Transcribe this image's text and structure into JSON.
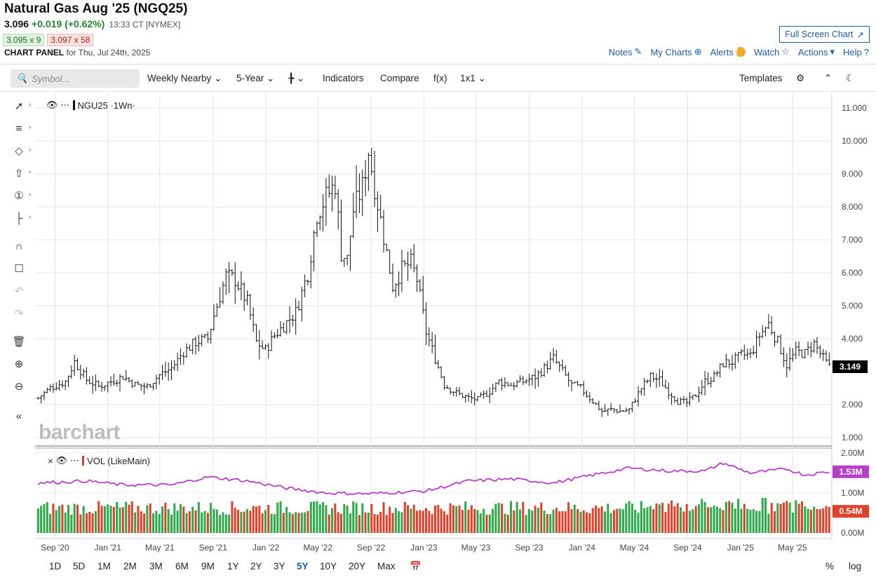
{
  "header": {
    "title": "Natural Gas Aug '25 (NGQ25)",
    "last": "3.096",
    "change": "+0.019 (+0.62%)",
    "time": "13:33 CT [NYMEX]",
    "bid": "3.095 x 9",
    "ask": "3.097 x 58",
    "panel_label": "CHART PANEL",
    "panel_date": "for Thu, Jul 24th, 2025",
    "fullscreen_label": "Full Screen Chart"
  },
  "top_links": {
    "notes": "Notes",
    "my_charts": "My Charts",
    "alerts": "Alerts",
    "alert_badge": "!",
    "watch": "Watch",
    "actions": "Actions",
    "help": "Help"
  },
  "toolbar": {
    "search_placeholder": "Symbol...",
    "interval": "Weekly Nearby",
    "period": "5-Year",
    "indicators": "Indicators",
    "compare": "Compare",
    "fx": "f(x)",
    "layout": "1x1",
    "templates": "Templates"
  },
  "legend": {
    "main": "NGU25 ·1Wn·",
    "volume": "VOL (LikeMain)"
  },
  "watermark": "barchart",
  "ranges": [
    "1D",
    "5D",
    "1M",
    "2M",
    "3M",
    "6M",
    "9M",
    "1Y",
    "2Y",
    "3Y",
    "5Y",
    "10Y",
    "20Y",
    "Max"
  ],
  "active_range": "5Y",
  "range_right": {
    "percent": "%",
    "log": "log"
  },
  "colors": {
    "up": "#2eaa4b",
    "down": "#e0412a",
    "vol_line": "#b63fc8",
    "price_label_bg": "#000000",
    "accent": "#1b5fa8"
  },
  "chart_data": [
    {
      "type": "ohlc",
      "symbol": "NGU25",
      "interval": "Weekly",
      "y_ticks": [
        "11.000",
        "10.000",
        "9.000",
        "8.000",
        "7.000",
        "6.000",
        "5.000",
        "4.000",
        "2.000",
        "1.000"
      ],
      "ylim": [
        0.55,
        11.2
      ],
      "x_ticks": [
        "Sep '20",
        "Jan '21",
        "May '21",
        "Sep '21",
        "Jan '22",
        "May '22",
        "Sep '22",
        "Jan '23",
        "May '23",
        "Sep '23",
        "Jan '24",
        "May '24",
        "Sep '24",
        "Jan '25",
        "May '25"
      ],
      "last_price_label": "3.149",
      "anchor_closes": [
        [
          "2020-07-24",
          2.2
        ],
        [
          "2020-08-21",
          2.5
        ],
        [
          "2020-09-25",
          2.7
        ],
        [
          "2020-10-16",
          3.3
        ],
        [
          "2020-11-13",
          2.75
        ],
        [
          "2020-12-11",
          2.55
        ],
        [
          "2021-01-08",
          2.7
        ],
        [
          "2021-02-05",
          2.85
        ],
        [
          "2021-03-05",
          2.6
        ],
        [
          "2021-04-02",
          2.55
        ],
        [
          "2021-04-30",
          2.9
        ],
        [
          "2021-05-28",
          3.1
        ],
        [
          "2021-06-25",
          3.6
        ],
        [
          "2021-07-23",
          3.9
        ],
        [
          "2021-08-20",
          4.0
        ],
        [
          "2021-09-03",
          4.7
        ],
        [
          "2021-10-01",
          5.9
        ],
        [
          "2021-10-22",
          5.8
        ],
        [
          "2021-11-19",
          5.1
        ],
        [
          "2021-12-10",
          3.9
        ],
        [
          "2021-12-31",
          3.65
        ],
        [
          "2022-01-21",
          4.1
        ],
        [
          "2022-02-18",
          4.5
        ],
        [
          "2022-03-11",
          4.8
        ],
        [
          "2022-04-08",
          6.0
        ],
        [
          "2022-04-29",
          7.8
        ],
        [
          "2022-05-20",
          8.3
        ],
        [
          "2022-06-10",
          8.7
        ],
        [
          "2022-06-24",
          6.6
        ],
        [
          "2022-07-08",
          6.4
        ],
        [
          "2022-07-22",
          7.9
        ],
        [
          "2022-08-12",
          8.6
        ],
        [
          "2022-08-26",
          9.7
        ],
        [
          "2022-09-16",
          8.1
        ],
        [
          "2022-10-07",
          6.6
        ],
        [
          "2022-10-21",
          5.6
        ],
        [
          "2022-11-11",
          6.1
        ],
        [
          "2022-12-02",
          6.3
        ],
        [
          "2022-12-16",
          5.8
        ],
        [
          "2023-01-06",
          4.2
        ],
        [
          "2023-01-27",
          3.4
        ],
        [
          "2023-02-17",
          2.6
        ],
        [
          "2023-03-17",
          2.35
        ],
        [
          "2023-04-14",
          2.2
        ],
        [
          "2023-05-05",
          2.15
        ],
        [
          "2023-06-02",
          2.4
        ],
        [
          "2023-06-23",
          2.7
        ],
        [
          "2023-07-21",
          2.6
        ],
        [
          "2023-08-18",
          2.7
        ],
        [
          "2023-09-15",
          2.85
        ],
        [
          "2023-10-06",
          3.1
        ],
        [
          "2023-10-27",
          3.4
        ],
        [
          "2023-11-17",
          3.0
        ],
        [
          "2023-12-08",
          2.6
        ],
        [
          "2023-12-29",
          2.5
        ],
        [
          "2024-01-26",
          2.1
        ],
        [
          "2024-02-16",
          1.8
        ],
        [
          "2024-03-08",
          1.85
        ],
        [
          "2024-03-29",
          1.8
        ],
        [
          "2024-04-19",
          1.85
        ],
        [
          "2024-05-17",
          2.5
        ],
        [
          "2024-06-07",
          2.85
        ],
        [
          "2024-06-28",
          2.75
        ],
        [
          "2024-07-19",
          2.4
        ],
        [
          "2024-08-09",
          2.1
        ],
        [
          "2024-08-30",
          2.05
        ],
        [
          "2024-09-20",
          2.3
        ],
        [
          "2024-10-11",
          2.7
        ],
        [
          "2024-11-01",
          2.85
        ],
        [
          "2024-11-22",
          3.25
        ],
        [
          "2024-12-13",
          3.3
        ],
        [
          "2025-01-03",
          3.5
        ],
        [
          "2025-01-24",
          3.5
        ],
        [
          "2025-02-14",
          4.1
        ],
        [
          "2025-03-07",
          4.45
        ],
        [
          "2025-03-28",
          3.9
        ],
        [
          "2025-04-18",
          3.2
        ],
        [
          "2025-05-09",
          3.6
        ],
        [
          "2025-05-30",
          3.55
        ],
        [
          "2025-06-20",
          3.85
        ],
        [
          "2025-07-11",
          3.4
        ],
        [
          "2025-07-24",
          3.15
        ]
      ]
    },
    {
      "type": "bar+line",
      "name": "VOL (LikeMain)",
      "y_ticks": [
        "2.00M",
        "1.00M",
        "0.00M"
      ],
      "ylim": [
        0,
        2.0
      ],
      "volume_line_label": "1.53M",
      "volume_bar_label": "0.54M",
      "volume_line_anchors_m": [
        [
          "2020-07-24",
          1.25
        ],
        [
          "2020-11-13",
          1.3
        ],
        [
          "2021-02-05",
          1.2
        ],
        [
          "2021-05-28",
          1.2
        ],
        [
          "2021-08-20",
          1.4
        ],
        [
          "2021-11-19",
          1.3
        ],
        [
          "2022-02-18",
          1.12
        ],
        [
          "2022-05-20",
          1.0
        ],
        [
          "2022-08-26",
          0.98
        ],
        [
          "2022-11-11",
          1.02
        ],
        [
          "2023-01-06",
          1.05
        ],
        [
          "2023-04-14",
          1.3
        ],
        [
          "2023-07-21",
          1.35
        ],
        [
          "2023-10-27",
          1.25
        ],
        [
          "2024-01-26",
          1.45
        ],
        [
          "2024-04-19",
          1.62
        ],
        [
          "2024-07-19",
          1.55
        ],
        [
          "2024-10-11",
          1.55
        ],
        [
          "2024-11-22",
          1.75
        ],
        [
          "2025-01-24",
          1.5
        ],
        [
          "2025-04-18",
          1.6
        ],
        [
          "2025-05-30",
          1.45
        ],
        [
          "2025-07-24",
          1.53
        ]
      ]
    }
  ]
}
